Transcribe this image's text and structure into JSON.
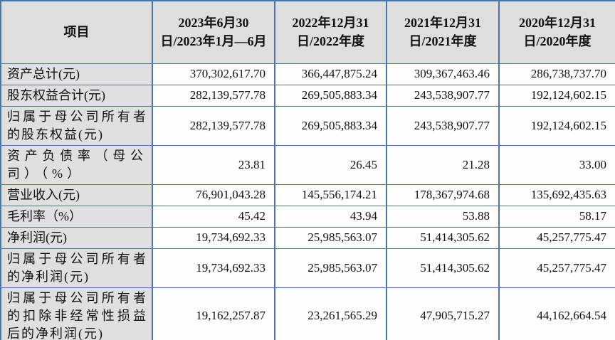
{
  "table": {
    "header": [
      "项目",
      "2023年6月30日/2023年1月—6月",
      "2022年12月31日/2022年度",
      "2021年12月31日/2021年度",
      "2020年12月31日/2020年度"
    ],
    "rows": [
      {
        "label": "资产总计(元)",
        "values": [
          "370,302,617.70",
          "366,447,875.24",
          "309,367,463.46",
          "286,738,737.70"
        ]
      },
      {
        "label": "股东权益合计(元)",
        "values": [
          "282,139,577.78",
          "269,505,883.34",
          "243,538,907.77",
          "192,124,602.15"
        ]
      },
      {
        "label": "归属于母公司所有者的股东权益(元)",
        "values": [
          "282,139,577.78",
          "269,505,883.34",
          "243,538,907.77",
          "192,124,602.15"
        ]
      },
      {
        "label": "资产负债率（母公司）（%）",
        "values": [
          "23.81",
          "26.45",
          "21.28",
          "33.00"
        ]
      },
      {
        "label": "营业收入(元)",
        "values": [
          "76,901,043.28",
          "145,556,174.21",
          "178,367,974.68",
          "135,692,435.63"
        ]
      },
      {
        "label": "毛利率（%）",
        "values": [
          "45.42",
          "43.94",
          "53.88",
          "58.17"
        ]
      },
      {
        "label": "净利润(元)",
        "values": [
          "19,734,692.33",
          "25,985,563.07",
          "51,414,305.62",
          "45,257,775.47"
        ]
      },
      {
        "label": "归属于母公司所有者的净利润(元)",
        "values": [
          "19,734,692.33",
          "25,985,563.07",
          "51,414,305.62",
          "45,257,775.47"
        ]
      },
      {
        "label": "归属于母公司所有者的扣除非经常性损益后的净利润(元)",
        "values": [
          "19,162,257.87",
          "23,261,565.29",
          "47,905,715.27",
          "44,162,664.54"
        ]
      }
    ]
  },
  "colors": {
    "grid_border": "#4d77a3",
    "header_background": "#dedede",
    "label_background": "#e0e0e0",
    "cell_background": "#fefefe"
  }
}
